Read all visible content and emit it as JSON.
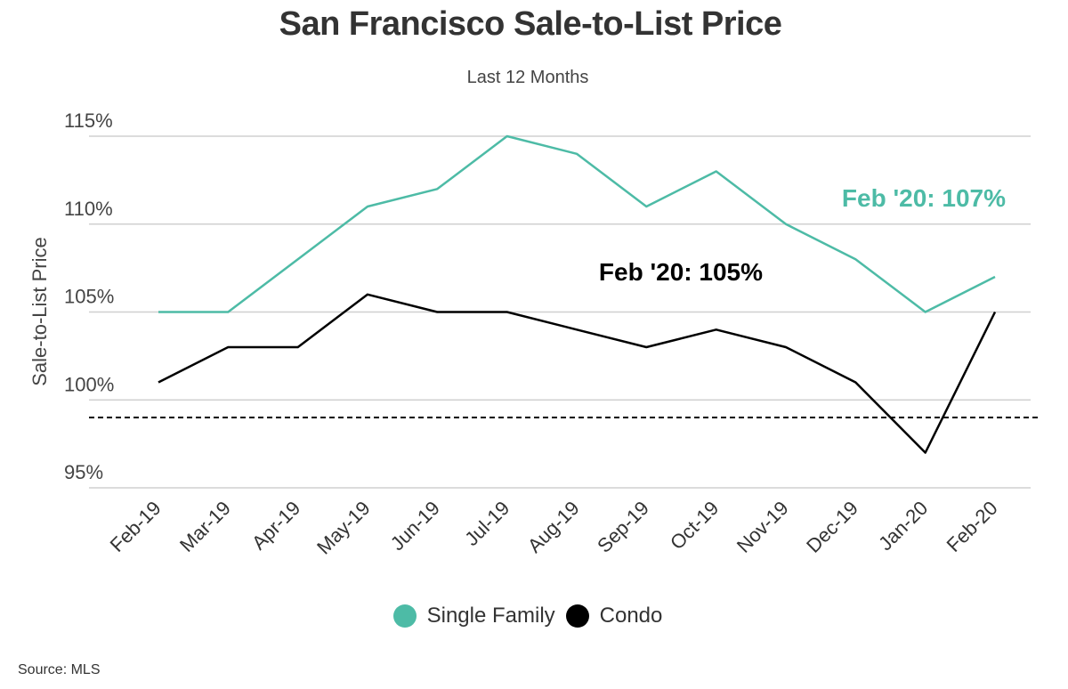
{
  "title": "San Francisco Sale-to-List Price",
  "subtitle": "Last 12 Months",
  "source": "Source:  MLS",
  "colors": {
    "single_family": "#4DBBA6",
    "condo": "#000000",
    "grid": "#d0d0d0",
    "text": "#333333"
  },
  "chart_data": {
    "type": "line",
    "title": "San Francisco Sale-to-List Price",
    "subtitle": "Last 12 Months",
    "ylabel": "Sale-to-List Price",
    "xlabel": "",
    "categories": [
      "Feb-19",
      "Mar-19",
      "Apr-19",
      "May-19",
      "Jun-19",
      "Jul-19",
      "Aug-19",
      "Sep-19",
      "Oct-19",
      "Nov-19",
      "Dec-19",
      "Jan-20",
      "Feb-20"
    ],
    "ylim": [
      95,
      115
    ],
    "yticks": [
      95,
      100,
      105,
      110,
      115
    ],
    "ytick_labels": [
      "95%",
      "100%",
      "105%",
      "110%",
      "115%"
    ],
    "grid": true,
    "reference_line": {
      "value": 99,
      "style": "dashed"
    },
    "legend": "bottom",
    "series": [
      {
        "name": "Single Family",
        "color": "#4DBBA6",
        "values": [
          105,
          105,
          108,
          111,
          112,
          115,
          114,
          111,
          113,
          110,
          108,
          105,
          107
        ]
      },
      {
        "name": "Condo",
        "color": "#000000",
        "values": [
          101,
          103,
          103,
          106,
          105,
          105,
          104,
          103,
          104,
          103,
          101,
          97,
          105
        ]
      }
    ],
    "annotations": [
      {
        "text": "Feb '20: 107%",
        "series": "Single Family"
      },
      {
        "text": "Feb '20: 105%",
        "series": "Condo"
      }
    ]
  }
}
